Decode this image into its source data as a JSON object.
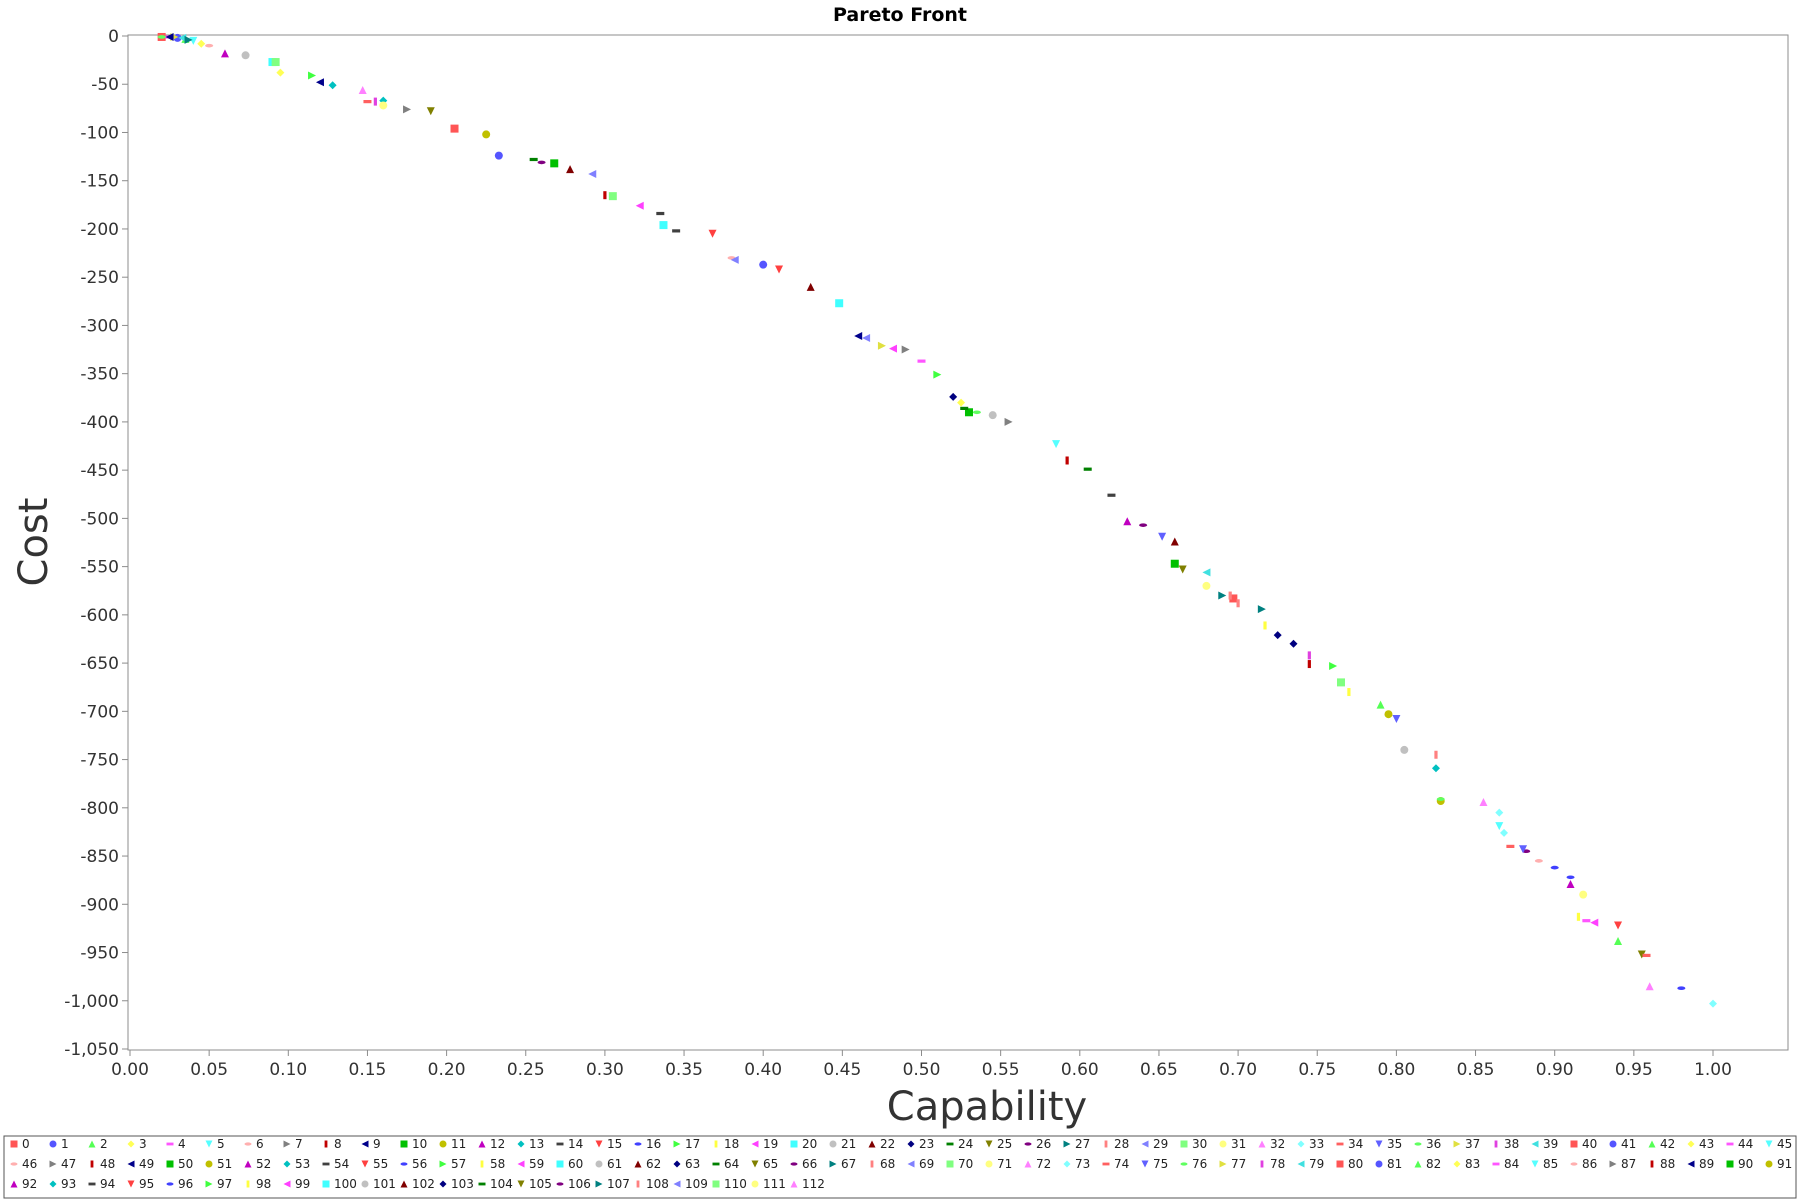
{
  "chart_data": {
    "type": "scatter",
    "title": "Pareto Front",
    "xlabel": "Capability",
    "ylabel": "Cost",
    "xlim": [
      0,
      1.05
    ],
    "ylim": [
      -1050,
      0
    ],
    "x_ticks": [
      0,
      0.05,
      0.1,
      0.15,
      0.2,
      0.25,
      0.3,
      0.35,
      0.4,
      0.45,
      0.5,
      0.55,
      0.6,
      0.65,
      0.7,
      0.75,
      0.8,
      0.85,
      0.9,
      0.95,
      1.0
    ],
    "x_tick_labels": [
      "0.00",
      "0.05",
      "0.10",
      "0.15",
      "0.20",
      "0.25",
      "0.30",
      "0.35",
      "0.40",
      "0.45",
      "0.50",
      "0.55",
      "0.60",
      "0.65",
      "0.70",
      "0.75",
      "0.80",
      "0.85",
      "0.90",
      "0.95",
      "1.00"
    ],
    "y_ticks": [
      0,
      -50,
      -100,
      -150,
      -200,
      -250,
      -300,
      -350,
      -400,
      -450,
      -500,
      -550,
      -600,
      -650,
      -700,
      -750,
      -800,
      -850,
      -900,
      -950,
      -1000,
      -1050
    ],
    "y_tick_labels": [
      "0",
      "-50",
      "-100",
      "-150",
      "-200",
      "-250",
      "-300",
      "-350",
      "-400",
      "-450",
      "-500",
      "-550",
      "-600",
      "-650",
      "-700",
      "-750",
      "-800",
      "-850",
      "-900",
      "-950",
      "-1,000",
      "-1,050"
    ],
    "grid": false,
    "legend_position": "bottom",
    "series": [
      {
        "name": "0",
        "x": 0.02,
        "y": -1
      },
      {
        "name": "1",
        "x": 0.03,
        "y": -2
      },
      {
        "name": "2",
        "x": 0.035,
        "y": -3
      },
      {
        "name": "3",
        "x": 0.045,
        "y": -8
      },
      {
        "name": "4",
        "x": 0.025,
        "y": -1
      },
      {
        "name": "5",
        "x": 0.04,
        "y": -5
      },
      {
        "name": "6",
        "x": 0.05,
        "y": -10
      },
      {
        "name": "7",
        "x": 0.175,
        "y": -76
      },
      {
        "name": "8",
        "x": 0.3,
        "y": -165
      },
      {
        "name": "9",
        "x": 0.12,
        "y": -48
      },
      {
        "name": "10",
        "x": 0.53,
        "y": -390
      },
      {
        "name": "11",
        "x": 0.225,
        "y": -102
      },
      {
        "name": "12",
        "x": 0.06,
        "y": -18
      },
      {
        "name": "13",
        "x": 0.16,
        "y": -67
      },
      {
        "name": "14",
        "x": 0.345,
        "y": -202
      },
      {
        "name": "15",
        "x": 0.94,
        "y": -922
      },
      {
        "name": "16",
        "x": 0.98,
        "y": -987
      },
      {
        "name": "17",
        "x": 0.51,
        "y": -351
      },
      {
        "name": "18",
        "x": 0.77,
        "y": -680
      },
      {
        "name": "19",
        "x": 0.925,
        "y": -919
      },
      {
        "name": "20",
        "x": 0.09,
        "y": -27
      },
      {
        "name": "21",
        "x": 0.805,
        "y": -740
      },
      {
        "name": "22",
        "x": 0.278,
        "y": -138
      },
      {
        "name": "23",
        "x": 0.52,
        "y": -374
      },
      {
        "name": "24",
        "x": 0.527,
        "y": -386
      },
      {
        "name": "25",
        "x": 0.19,
        "y": -78
      },
      {
        "name": "26",
        "x": 0.26,
        "y": -131
      },
      {
        "name": "27",
        "x": 0.715,
        "y": -594
      },
      {
        "name": "28",
        "x": 0.825,
        "y": -745
      },
      {
        "name": "29",
        "x": 0.292,
        "y": -143
      },
      {
        "name": "30",
        "x": 0.765,
        "y": -670
      },
      {
        "name": "31",
        "x": 0.68,
        "y": -570
      },
      {
        "name": "32",
        "x": 0.855,
        "y": -794
      },
      {
        "name": "33",
        "x": 0.865,
        "y": -805
      },
      {
        "name": "34",
        "x": 0.15,
        "y": -68
      },
      {
        "name": "35",
        "x": 0.8,
        "y": -708
      },
      {
        "name": "36",
        "x": 0.535,
        "y": -390
      },
      {
        "name": "37",
        "x": 0.475,
        "y": -321
      },
      {
        "name": "38",
        "x": 0.745,
        "y": -642
      },
      {
        "name": "39",
        "x": 0.033,
        "y": -2
      },
      {
        "name": "40",
        "x": 0.697,
        "y": -583
      },
      {
        "name": "41",
        "x": 0.233,
        "y": -124
      },
      {
        "name": "42",
        "x": 0.79,
        "y": -693
      },
      {
        "name": "43",
        "x": 0.525,
        "y": -380
      },
      {
        "name": "44",
        "x": 0.92,
        "y": -917
      },
      {
        "name": "45",
        "x": 0.585,
        "y": -423
      },
      {
        "name": "46",
        "x": 0.38,
        "y": -230
      },
      {
        "name": "47",
        "x": 0.555,
        "y": -400
      },
      {
        "name": "48",
        "x": 0.745,
        "y": -651
      },
      {
        "name": "49",
        "x": 0.46,
        "y": -311
      },
      {
        "name": "50",
        "x": 0.66,
        "y": -547
      },
      {
        "name": "51",
        "x": 0.795,
        "y": -703
      },
      {
        "name": "52",
        "x": 0.63,
        "y": -503
      },
      {
        "name": "53",
        "x": 0.128,
        "y": -51
      },
      {
        "name": "54",
        "x": 0.335,
        "y": -184
      },
      {
        "name": "55",
        "x": 0.368,
        "y": -205
      },
      {
        "name": "56",
        "x": 0.91,
        "y": -872
      },
      {
        "name": "57",
        "x": 0.115,
        "y": -41
      },
      {
        "name": "58",
        "x": 0.915,
        "y": -913
      },
      {
        "name": "59",
        "x": 0.322,
        "y": -176
      },
      {
        "name": "60",
        "x": 0.448,
        "y": -277
      },
      {
        "name": "61",
        "x": 0.073,
        "y": -20
      },
      {
        "name": "62",
        "x": 0.43,
        "y": -260
      },
      {
        "name": "63",
        "x": 0.725,
        "y": -621
      },
      {
        "name": "64",
        "x": 0.605,
        "y": -449
      },
      {
        "name": "65",
        "x": 0.665,
        "y": -553
      },
      {
        "name": "66",
        "x": 0.64,
        "y": -507
      },
      {
        "name": "67",
        "x": 0.69,
        "y": -580
      },
      {
        "name": "68",
        "x": 0.7,
        "y": -588
      },
      {
        "name": "69",
        "x": 0.465,
        "y": -313
      },
      {
        "name": "70",
        "x": 0.092,
        "y": -27
      },
      {
        "name": "71",
        "x": 0.918,
        "y": -890
      },
      {
        "name": "72",
        "x": 0.147,
        "y": -56
      },
      {
        "name": "73",
        "x": 0.868,
        "y": -826
      },
      {
        "name": "74",
        "x": 0.872,
        "y": -840
      },
      {
        "name": "75",
        "x": 0.652,
        "y": -519
      },
      {
        "name": "76",
        "x": 0.02,
        "y": -1
      },
      {
        "name": "77",
        "x": 0.028,
        "y": -1
      },
      {
        "name": "78",
        "x": 0.155,
        "y": -68
      },
      {
        "name": "79",
        "x": 0.68,
        "y": -556
      },
      {
        "name": "80",
        "x": 0.205,
        "y": -96
      },
      {
        "name": "81",
        "x": 0.4,
        "y": -237
      },
      {
        "name": "82",
        "x": 0.94,
        "y": -938
      },
      {
        "name": "83",
        "x": 0.095,
        "y": -38
      },
      {
        "name": "84",
        "x": 0.5,
        "y": -337
      },
      {
        "name": "85",
        "x": 0.865,
        "y": -819
      },
      {
        "name": "86",
        "x": 0.89,
        "y": -855
      },
      {
        "name": "87",
        "x": 0.49,
        "y": -325
      },
      {
        "name": "88",
        "x": 0.592,
        "y": -440
      },
      {
        "name": "89",
        "x": 0.025,
        "y": -1
      },
      {
        "name": "90",
        "x": 0.268,
        "y": -132
      },
      {
        "name": "91",
        "x": 0.828,
        "y": -793
      },
      {
        "name": "92",
        "x": 0.91,
        "y": -879
      },
      {
        "name": "93",
        "x": 0.825,
        "y": -759
      },
      {
        "name": "94",
        "x": 0.62,
        "y": -476
      },
      {
        "name": "95",
        "x": 0.41,
        "y": -242
      },
      {
        "name": "96",
        "x": 0.9,
        "y": -862
      },
      {
        "name": "97",
        "x": 0.76,
        "y": -653
      },
      {
        "name": "98",
        "x": 0.717,
        "y": -611
      },
      {
        "name": "99",
        "x": 0.482,
        "y": -324
      },
      {
        "name": "100",
        "x": 0.337,
        "y": -196
      },
      {
        "name": "101",
        "x": 0.545,
        "y": -393
      },
      {
        "name": "102",
        "x": 0.66,
        "y": -524
      },
      {
        "name": "103",
        "x": 0.735,
        "y": -630
      },
      {
        "name": "104",
        "x": 0.255,
        "y": -128
      },
      {
        "name": "105",
        "x": 0.955,
        "y": -952
      },
      {
        "name": "106",
        "x": 0.882,
        "y": -845
      },
      {
        "name": "107",
        "x": 0.037,
        "y": -4
      },
      {
        "name": "108",
        "x": 0.695,
        "y": -580
      },
      {
        "name": "109",
        "x": 0.382,
        "y": -232
      },
      {
        "name": "110",
        "x": 0.305,
        "y": -166
      },
      {
        "name": "111",
        "x": 0.16,
        "y": -72
      },
      {
        "name": "112",
        "x": 0.96,
        "y": -985
      },
      {
        "name": "",
        "x": 1.0,
        "y": -1003
      },
      {
        "name": "",
        "x": 0.958,
        "y": -953
      },
      {
        "name": "",
        "x": 0.88,
        "y": -843
      },
      {
        "name": "",
        "x": 0.828,
        "y": -791
      }
    ]
  }
}
